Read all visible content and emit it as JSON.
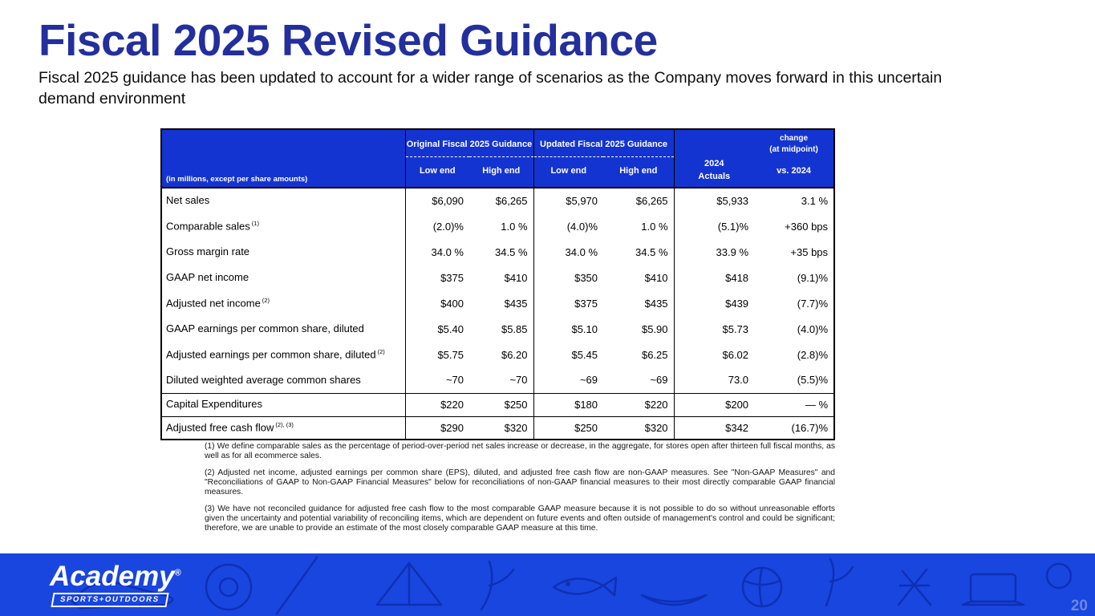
{
  "slide": {
    "title": "Fiscal 2025 Revised Guidance",
    "subtitle": "Fiscal 2025 guidance has been updated to account for a wider range of scenarios as the Company moves forward in this uncertain demand environment"
  },
  "table": {
    "corner_label": "(in millions, except per share amounts)",
    "groups": [
      {
        "label": "Original Fiscal 2025 Guidance"
      },
      {
        "label": "Updated Fiscal 2025 Guidance"
      }
    ],
    "subheaders": [
      "Low end",
      "High end",
      "Low end",
      "High end"
    ],
    "actuals_header_line1": "2024",
    "actuals_header_line2": "Actuals",
    "change_header_line1": "change",
    "change_header_line2": "(at midpoint)",
    "change_header_line3": "vs. 2024",
    "rows": [
      {
        "label": "Net sales",
        "sup": "",
        "values": [
          "$6,090",
          "$6,265",
          "$5,970",
          "$6,265",
          "$5,933",
          "3.1 %"
        ]
      },
      {
        "label": "Comparable sales",
        "sup": "(1)",
        "values": [
          "(2.0)%",
          "1.0 %",
          "(4.0)%",
          "1.0 %",
          "(5.1)%",
          "+360 bps"
        ]
      },
      {
        "label": "Gross margin rate",
        "sup": "",
        "values": [
          "34.0 %",
          "34.5 %",
          "34.0 %",
          "34.5 %",
          "33.9 %",
          "+35 bps"
        ]
      },
      {
        "label": "GAAP net income",
        "sup": "",
        "values": [
          "$375",
          "$410",
          "$350",
          "$410",
          "$418",
          "(9.1)%"
        ]
      },
      {
        "label": "Adjusted net income",
        "sup": "(2)",
        "values": [
          "$400",
          "$435",
          "$375",
          "$435",
          "$439",
          "(7.7)%"
        ]
      },
      {
        "label": "GAAP earnings per common share, diluted",
        "sup": "",
        "values": [
          "$5.40",
          "$5.85",
          "$5.10",
          "$5.90",
          "$5.73",
          "(4.0)%"
        ]
      },
      {
        "label": "Adjusted earnings per common share, diluted",
        "sup": "(2)",
        "values": [
          "$5.75",
          "$6.20",
          "$5.45",
          "$6.25",
          "$6.02",
          "(2.8)%"
        ]
      },
      {
        "label": "Diluted weighted average common shares",
        "sup": "",
        "values": [
          "~70",
          "~70",
          "~69",
          "~69",
          "73.0",
          "(5.5)%"
        ]
      },
      {
        "label": "Capital Expenditures",
        "sup": "",
        "values": [
          "$220",
          "$250",
          "$180",
          "$220",
          "$200",
          "— %"
        ],
        "top_border": true
      },
      {
        "label": "Adjusted free cash flow",
        "sup": "(2), (3)",
        "values": [
          "$290",
          "$320",
          "$250",
          "$320",
          "$342",
          "(16.7)%"
        ],
        "top_border": true
      }
    ]
  },
  "footnotes": [
    "(1) We define comparable sales as the percentage of period-over-period net sales increase or decrease, in the aggregate, for stores open after thirteen full fiscal months, as well as for all ecommerce sales.",
    "(2) Adjusted net income, adjusted earnings per common share (EPS), diluted, and adjusted free cash flow are non-GAAP measures. See \"Non-GAAP Measures\" and \"Reconciliations of GAAP to Non-GAAP Financial Measures\" below for reconciliations of non-GAAP financial measures to their most directly comparable GAAP financial measures.",
    "(3) We have not reconciled guidance for adjusted free cash flow to the most comparable GAAP measure because it is not possible to do so without unreasonable efforts given the uncertainty and potential variability of reconciling items, which are dependent on future events and often outside of management's control and could be significant; therefore, we are unable to provide an estimate of the most closely comparable GAAP measure at this time."
  ],
  "footer": {
    "logo_primary": "Academy",
    "logo_registered": "®",
    "logo_secondary": "SPORTS+OUTDOORS",
    "page_number": "20"
  },
  "colors": {
    "title_blue": "#232F9D",
    "table_header_blue": "#1434D1",
    "footer_blue": "#1946DF",
    "footer_pattern_blue": "#0D2EB0",
    "page_number_blue": "#6D87E3"
  }
}
